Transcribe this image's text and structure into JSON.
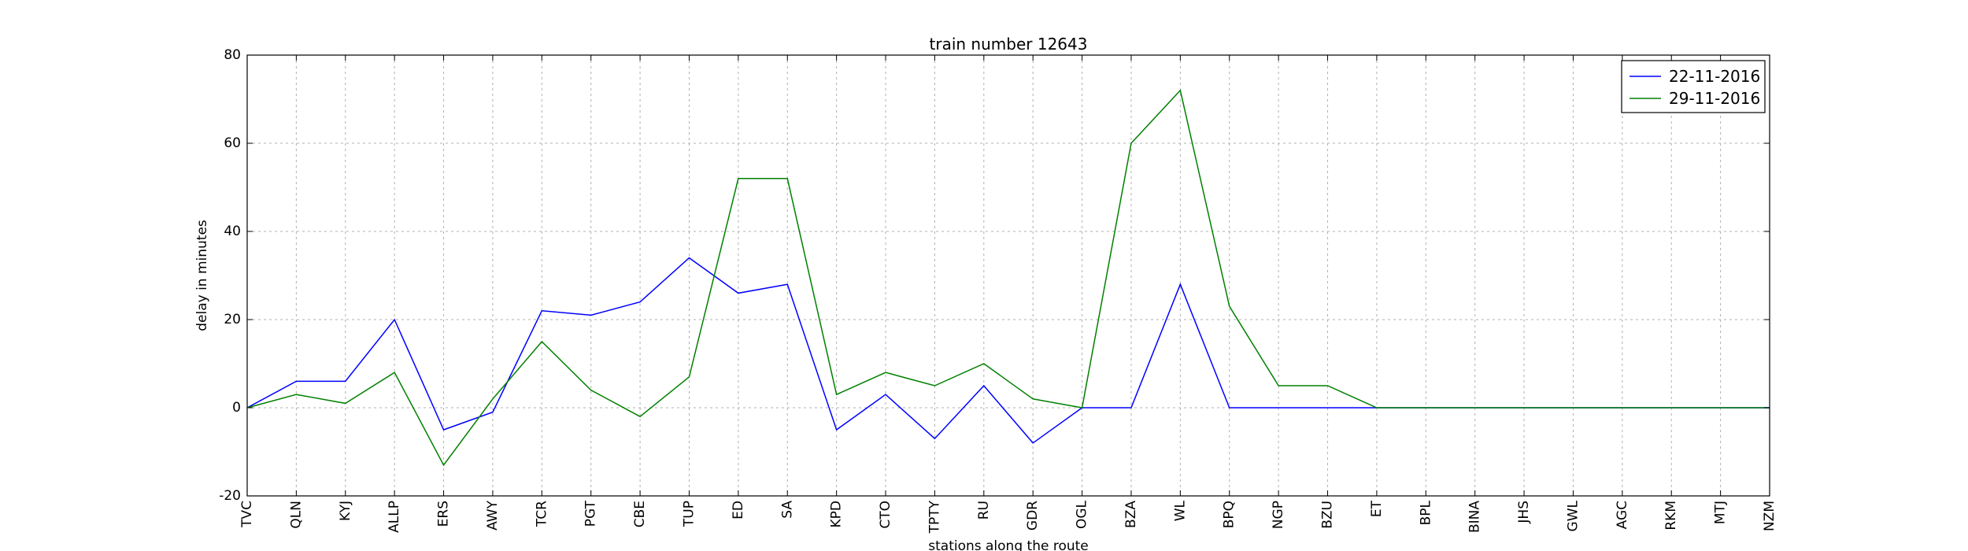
{
  "chart_data": {
    "type": "line",
    "title": "train number 12643",
    "xlabel": "stations along the route",
    "ylabel": "delay in minutes",
    "categories": [
      "TVC",
      "QLN",
      "KYJ",
      "ALLP",
      "ERS",
      "AWY",
      "TCR",
      "PGT",
      "CBE",
      "TUP",
      "ED",
      "SA",
      "KPD",
      "CTO",
      "TPTY",
      "RU",
      "GDR",
      "OGL",
      "BZA",
      "WL",
      "BPQ",
      "NGP",
      "BZU",
      "ET",
      "BPL",
      "BINA",
      "JHS",
      "GWL",
      "AGC",
      "RKM",
      "MTJ",
      "NZM"
    ],
    "ylim": [
      -20,
      80
    ],
    "yticks": [
      -20,
      0,
      20,
      40,
      60,
      80
    ],
    "grid": true,
    "legend_position": "top-right",
    "series": [
      {
        "name": "22-11-2016",
        "color": "#0000ff",
        "values": [
          0,
          6,
          6,
          20,
          -5,
          -1,
          22,
          21,
          24,
          34,
          26,
          28,
          -5,
          3,
          -7,
          5,
          -8,
          0,
          0,
          28,
          0,
          0,
          0,
          0,
          0,
          0,
          0,
          0,
          0,
          0,
          0,
          0
        ]
      },
      {
        "name": "29-11-2016",
        "color": "#008000",
        "values": [
          0,
          3,
          1,
          8,
          -13,
          2,
          15,
          4,
          -2,
          7,
          52,
          52,
          3,
          8,
          5,
          10,
          2,
          0,
          60,
          72,
          23,
          5,
          5,
          0,
          0,
          0,
          0,
          0,
          0,
          0,
          0,
          0
        ]
      }
    ]
  }
}
